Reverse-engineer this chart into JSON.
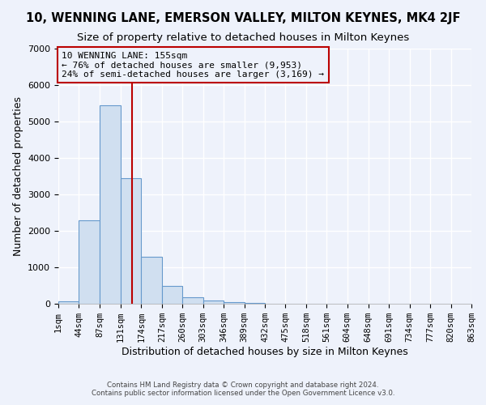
{
  "title": "10, WENNING LANE, EMERSON VALLEY, MILTON KEYNES, MK4 2JF",
  "subtitle": "Size of property relative to detached houses in Milton Keynes",
  "xlabel": "Distribution of detached houses by size in Milton Keynes",
  "ylabel": "Number of detached properties",
  "footer_line1": "Contains HM Land Registry data © Crown copyright and database right 2024.",
  "footer_line2": "Contains public sector information licensed under the Open Government Licence v3.0.",
  "annotation_line1": "10 WENNING LANE: 155sqm",
  "annotation_line2": "← 76% of detached houses are smaller (9,953)",
  "annotation_line3": "24% of semi-detached houses are larger (3,169) →",
  "property_size": 155,
  "bin_edges": [
    1,
    44,
    87,
    131,
    174,
    217,
    260,
    303,
    346,
    389,
    432,
    475,
    518,
    561,
    604,
    648,
    691,
    734,
    777,
    820,
    863
  ],
  "bar_heights": [
    75,
    2300,
    5450,
    3450,
    1300,
    480,
    175,
    100,
    50,
    15,
    5,
    2,
    1,
    1,
    0,
    0,
    0,
    0,
    0,
    0
  ],
  "bar_color": "#d0dff0",
  "bar_edgecolor": "#6699cc",
  "line_color": "#bb0000",
  "background_color": "#eef2fb",
  "grid_color": "#ffffff",
  "ylim": [
    0,
    7000
  ],
  "title_fontsize": 10.5,
  "subtitle_fontsize": 9.5,
  "xlabel_fontsize": 9,
  "ylabel_fontsize": 9,
  "annotation_fontsize": 8,
  "tick_fontsize": 7.5,
  "ytick_fontsize": 8
}
